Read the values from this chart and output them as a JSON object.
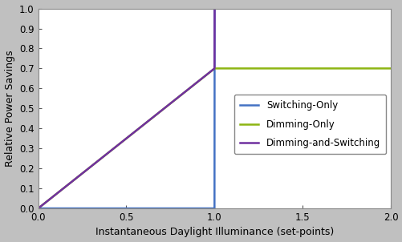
{
  "title": "",
  "xlabel": "Instantaneous Daylight Illuminance (set-points)",
  "ylabel": "Relative Power Savings",
  "xlim": [
    0,
    2
  ],
  "ylim": [
    0,
    1
  ],
  "xticks": [
    0,
    0.5,
    1,
    1.5,
    2
  ],
  "yticks": [
    0,
    0.1,
    0.2,
    0.3,
    0.4,
    0.5,
    0.6,
    0.7,
    0.8,
    0.9,
    1
  ],
  "switching_color": "#4472C4",
  "dimming_color": "#8DB512",
  "dimming_switching_color": "#7030A0",
  "dimming_max": 0.7,
  "setpoint": 1.0,
  "fig_background_color": "#C0C0C0",
  "plot_background_color": "#FFFFFF",
  "legend_labels": [
    "Switching-Only",
    "Dimming-Only",
    "Dimming-and-Switching"
  ],
  "linewidth": 1.8,
  "xlabel_fontsize": 9,
  "ylabel_fontsize": 9,
  "tick_fontsize": 8.5,
  "legend_fontsize": 8.5
}
